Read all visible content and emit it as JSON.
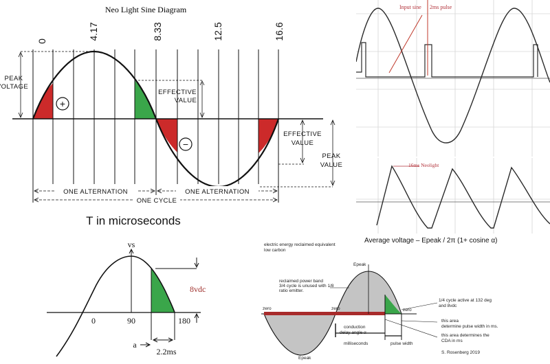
{
  "main_diagram": {
    "title": "Neo Light Sine Diagram",
    "time_ticks": [
      "0",
      "4.17",
      "8.33",
      "12.5",
      "16.6"
    ],
    "peak_voltage_left_line1": "PEAK",
    "peak_voltage_left_line2": "VOLTAGE",
    "effective_value_top_line1": "EFFECTIVE",
    "effective_value_top_line2": "VALUE",
    "effective_value_mid_line1": "EFFECTIVE",
    "effective_value_mid_line2": "VALUE",
    "peak_value_right_line1": "PEAK",
    "peak_value_right_line2": "VALUE",
    "plus_sign": "+",
    "minus_sign": "−",
    "alternation_1": "ONE ALTERNATION",
    "alternation_2": "ONE ALTERNATION",
    "cycle": "ONE CYCLE",
    "time_unit_caption": "T in microseconds",
    "colors": {
      "red_fill": "#cc2a2a",
      "green_fill": "#3aa64a",
      "curve": "#111111"
    }
  },
  "scope_top": {
    "label_input_sine": "Input sine",
    "label_pulse": "2ms pulse",
    "colors": {
      "label": "#b2323a",
      "arrow": "#c0392b",
      "trace": "#2a2a2a",
      "grid": "#cfcfcf"
    }
  },
  "scope_bottom": {
    "label_neolight": "16ms Neolight",
    "colors": {
      "label": "#b2323a",
      "trace": "#2a2a2a",
      "grid": "#cfcfcf"
    }
  },
  "formula": {
    "text": "Average  voltage  – Epeak / 2π (1+ cosine α)"
  },
  "half_wave": {
    "vs_label": "vs",
    "label_0": "0",
    "label_90": "90",
    "label_180": "180",
    "voltage_label": "8vdc",
    "a_label": "a",
    "time_label": "2.2ms",
    "colors": {
      "green": "#3aa64a",
      "voltage_label": "#a0322e"
    }
  },
  "energy_diagram": {
    "note_line1": "electric energy reclaimed equivalent",
    "note_line2": "low carbon",
    "epeak_top": "Epeak",
    "epeak_bottom": "Epeak",
    "zero_left": "zero",
    "zero_mid": "zero",
    "zero_right": "zero",
    "reclaimed_line1": "reclaimed power band",
    "reclaimed_line2": "3/4 cycle is unused with 1/8",
    "reclaimed_line3": "ratio emitter.",
    "active_line1": "1/4 cycle active at 132 deg",
    "active_line2": "and 8vdc",
    "pulse_area_line1": "this area",
    "pulse_area_line2": "determine pulse width in ms.",
    "cda_line1": "this area determines the",
    "cda_line2": "CDA in ms",
    "conduction_line1": "conduction",
    "conduction_line2": "delay angle α",
    "conduction_line3": "milliseconds",
    "pulse_width": "pulse width",
    "signature": "S. Rosenberg  2019",
    "colors": {
      "gray_fill": "#c4c4c4",
      "red_band": "#a82b2b",
      "green": "#3aa64a"
    }
  }
}
